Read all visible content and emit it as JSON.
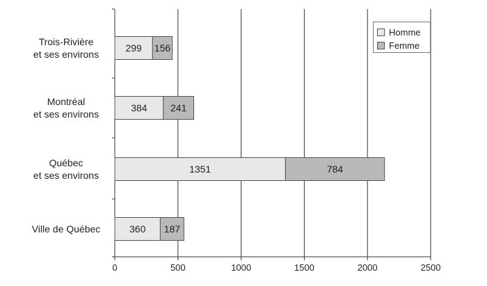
{
  "chart_data": {
    "type": "bar",
    "orientation": "horizontal",
    "stacked": true,
    "categories": [
      [
        "Trois-Rivière",
        "et ses environs"
      ],
      [
        "Montréal",
        "et ses environs"
      ],
      [
        "Québec",
        "et ses environs"
      ],
      [
        "Ville de Québec"
      ]
    ],
    "series": [
      {
        "name": "Homme",
        "values": [
          299,
          384,
          1351,
          360
        ],
        "color": "#e8e8e8"
      },
      {
        "name": "Femme",
        "values": [
          156,
          241,
          784,
          187
        ],
        "color": "#b9b9b9"
      }
    ],
    "xlim": [
      0,
      2500
    ],
    "xticks": [
      "0",
      "500",
      "1000",
      "1500",
      "2000",
      "2500"
    ],
    "grid": true,
    "legend_position": "top-right"
  }
}
